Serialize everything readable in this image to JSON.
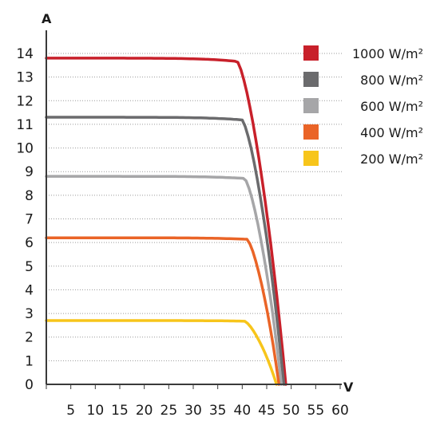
{
  "chart_data": {
    "type": "line",
    "xlabel": "V",
    "ylabel": "A",
    "xlim": [
      0,
      60
    ],
    "ylim": [
      0,
      14
    ],
    "x_ticks": [
      "5",
      "10",
      "15",
      "20",
      "25",
      "30",
      "35",
      "40",
      "45",
      "50",
      "55",
      "60"
    ],
    "y_ticks": [
      "0",
      "1",
      "2",
      "3",
      "4",
      "5",
      "6",
      "7",
      "8",
      "9",
      "10",
      "11",
      "12",
      "13",
      "14"
    ],
    "grid": true,
    "legend_position": "top-right",
    "series": [
      {
        "name": "1000 W/m²",
        "color": "#c8202a",
        "isc": 13.8,
        "voc": 48.9,
        "knee": 39.0
      },
      {
        "name": "800 W/m²",
        "color": "#6b6b6d",
        "isc": 11.3,
        "voc": 48.5,
        "knee": 40.0
      },
      {
        "name": "600 W/m²",
        "color": "#a6a6a8",
        "isc": 8.8,
        "voc": 48.0,
        "knee": 40.5
      },
      {
        "name": "400 W/m²",
        "color": "#ea6427",
        "isc": 6.2,
        "voc": 47.5,
        "knee": 41.0
      },
      {
        "name": "200 W/m²",
        "color": "#f7c51b",
        "isc": 2.7,
        "voc": 47.0,
        "knee": 40.5
      }
    ]
  }
}
